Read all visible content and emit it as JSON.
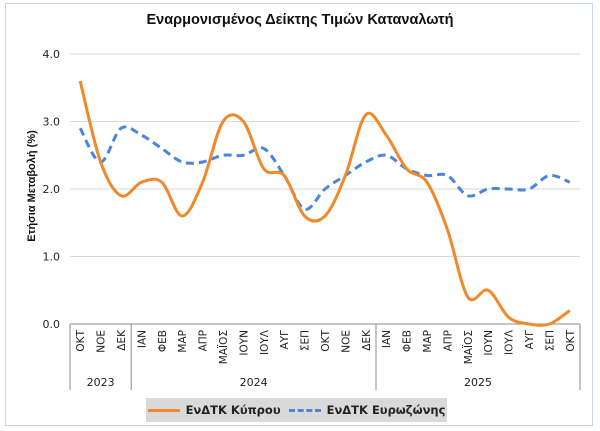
{
  "chart_data": {
    "type": "line",
    "title": "Εναρμονισμένος Δείκτης Τιμών Καταναλωτή",
    "ylabel": "Ετήσια Μεταβολή (%)",
    "xlabel": "",
    "ylim": [
      0,
      4
    ],
    "yticks": [
      "0.0",
      "1.0",
      "2.0",
      "3.0",
      "4.0"
    ],
    "grid": true,
    "legend": "bottom",
    "categories": [
      "ΟΚΤ",
      "ΝΟΕ",
      "ΔΕΚ",
      "ΙΑΝ",
      "ΦΕΒ",
      "ΜΑΡ",
      "ΑΠΡ",
      "ΜΑΪΟΣ",
      "ΙΟΥΝ",
      "ΙΟΥΛ",
      "ΑΥΓ",
      "ΣΕΠ",
      "ΟΚΤ",
      "ΝΟΕ",
      "ΔΕΚ",
      "ΙΑΝ",
      "ΦΕΒ",
      "ΜΑΡ",
      "ΑΠΡ",
      "ΜΑΪΟΣ",
      "ΙΟΥΝ",
      "ΙΟΥΛ",
      "ΑΥΓ",
      "ΣΕΠ",
      "ΟΚΤ"
    ],
    "years": [
      {
        "label": "2023",
        "count": 3
      },
      {
        "label": "2024",
        "count": 12
      },
      {
        "label": "2025",
        "count": 10
      }
    ],
    "series": [
      {
        "name": "ΕνΔΤΚ Κύπρου",
        "color": "#f0892a",
        "style": "solid",
        "values": [
          3.6,
          2.4,
          1.9,
          2.1,
          2.1,
          1.6,
          2.1,
          3.0,
          3.0,
          2.3,
          2.2,
          1.6,
          1.6,
          2.2,
          3.1,
          2.8,
          2.3,
          2.1,
          1.4,
          0.4,
          0.5,
          0.1,
          0.0,
          0.0,
          0.2
        ]
      },
      {
        "name": "ΕνΔΤΚ Ευρωζώνης",
        "color": "#4a86d8",
        "style": "dashed",
        "values": [
          2.9,
          2.4,
          2.9,
          2.8,
          2.6,
          2.4,
          2.4,
          2.5,
          2.5,
          2.6,
          2.2,
          1.7,
          2.0,
          2.2,
          2.4,
          2.5,
          2.3,
          2.2,
          2.2,
          1.9,
          2.0,
          2.0,
          2.0,
          2.2,
          2.1
        ]
      }
    ]
  }
}
